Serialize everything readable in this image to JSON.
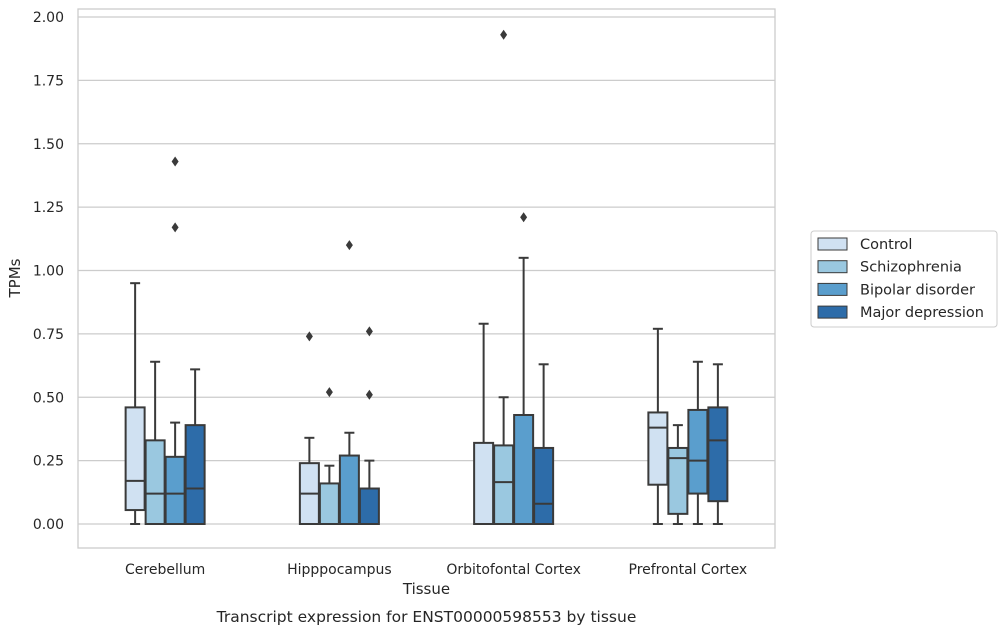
{
  "chart_data": {
    "type": "box",
    "title": "",
    "caption": "Transcript expression for ENST00000598553 by tissue",
    "xlabel": "Tissue",
    "ylabel": "TPMs",
    "ylim": [
      -0.095,
      2.03
    ],
    "yticks": [
      "0.00",
      "0.25",
      "0.50",
      "0.75",
      "1.00",
      "1.25",
      "1.50",
      "1.75",
      "2.00"
    ],
    "grid": "horizontal",
    "legend_position": "right",
    "categories": [
      "Cerebellum",
      "Hipppocampus",
      "Orbitofontal Cortex",
      "Prefrontal Cortex"
    ],
    "series": [
      {
        "name": "Control",
        "color": "#d0e1f2",
        "boxes": [
          {
            "whisker_low": 0.0,
            "q1": 0.055,
            "median": 0.17,
            "q3": 0.46,
            "whisker_high": 0.95,
            "outliers": []
          },
          {
            "whisker_low": 0.0,
            "q1": 0.0,
            "median": 0.12,
            "q3": 0.24,
            "whisker_high": 0.34,
            "outliers": [
              0.74
            ]
          },
          {
            "whisker_low": 0.0,
            "q1": 0.0,
            "median": 0.0,
            "q3": 0.32,
            "whisker_high": 0.79,
            "outliers": []
          },
          {
            "whisker_low": 0.0,
            "q1": 0.155,
            "median": 0.38,
            "q3": 0.44,
            "whisker_high": 0.77,
            "outliers": []
          }
        ]
      },
      {
        "name": "Schizophrenia",
        "color": "#9ac8e0",
        "boxes": [
          {
            "whisker_low": 0.0,
            "q1": 0.0,
            "median": 0.12,
            "q3": 0.33,
            "whisker_high": 0.64,
            "outliers": []
          },
          {
            "whisker_low": 0.0,
            "q1": 0.0,
            "median": 0.0,
            "q3": 0.16,
            "whisker_high": 0.23,
            "outliers": [
              0.52
            ]
          },
          {
            "whisker_low": 0.0,
            "q1": 0.0,
            "median": 0.165,
            "q3": 0.31,
            "whisker_high": 0.5,
            "outliers": [
              1.93
            ]
          },
          {
            "whisker_low": 0.0,
            "q1": 0.04,
            "median": 0.26,
            "q3": 0.3,
            "whisker_high": 0.39,
            "outliers": []
          }
        ]
      },
      {
        "name": "Bipolar disorder",
        "color": "#5a9ecd",
        "boxes": [
          {
            "whisker_low": 0.0,
            "q1": 0.0,
            "median": 0.12,
            "q3": 0.265,
            "whisker_high": 0.4,
            "outliers": [
              1.17,
              1.43
            ]
          },
          {
            "whisker_low": 0.0,
            "q1": 0.0,
            "median": 0.0,
            "q3": 0.27,
            "whisker_high": 0.36,
            "outliers": [
              1.1
            ]
          },
          {
            "whisker_low": 0.0,
            "q1": 0.0,
            "median": 0.0,
            "q3": 0.43,
            "whisker_high": 1.05,
            "outliers": [
              1.21
            ]
          },
          {
            "whisker_low": 0.0,
            "q1": 0.12,
            "median": 0.25,
            "q3": 0.45,
            "whisker_high": 0.64,
            "outliers": []
          }
        ]
      },
      {
        "name": "Major depression",
        "color": "#2d6ca9",
        "boxes": [
          {
            "whisker_low": 0.0,
            "q1": 0.0,
            "median": 0.14,
            "q3": 0.39,
            "whisker_high": 0.61,
            "outliers": []
          },
          {
            "whisker_low": 0.0,
            "q1": 0.0,
            "median": 0.0,
            "q3": 0.14,
            "whisker_high": 0.25,
            "outliers": [
              0.51,
              0.76
            ]
          },
          {
            "whisker_low": 0.0,
            "q1": 0.0,
            "median": 0.08,
            "q3": 0.3,
            "whisker_high": 0.63,
            "outliers": []
          },
          {
            "whisker_low": 0.0,
            "q1": 0.09,
            "median": 0.33,
            "q3": 0.46,
            "whisker_high": 0.63,
            "outliers": []
          }
        ]
      }
    ]
  }
}
